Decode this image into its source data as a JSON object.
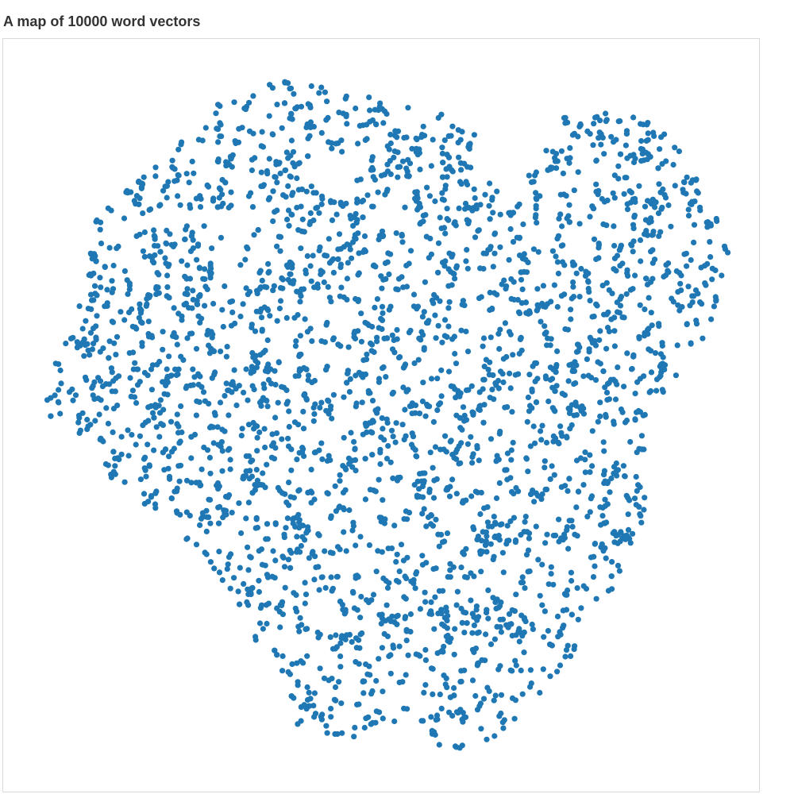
{
  "title": "A map of 10000 word vectors",
  "chart_data": {
    "type": "scatter",
    "title": "A map of 10000 word vectors",
    "xlabel": "",
    "ylabel": "",
    "grid": false,
    "legend": "none",
    "axes_visible": false,
    "point_color": "#1f77b4",
    "n_points_total": 10000,
    "xlim": [
      0,
      1
    ],
    "ylim": [
      0,
      1
    ],
    "series": [
      {
        "name": "",
        "x": [],
        "y": []
      }
    ],
    "shape_outline": [
      [
        0.05,
        0.52
      ],
      [
        0.08,
        0.44
      ],
      [
        0.12,
        0.27
      ],
      [
        0.2,
        0.2
      ],
      [
        0.27,
        0.13
      ],
      [
        0.36,
        0.1
      ],
      [
        0.46,
        0.12
      ],
      [
        0.54,
        0.14
      ],
      [
        0.6,
        0.17
      ],
      [
        0.64,
        0.27
      ],
      [
        0.7,
        0.15
      ],
      [
        0.78,
        0.13
      ],
      [
        0.84,
        0.15
      ],
      [
        0.9,
        0.26
      ],
      [
        0.92,
        0.34
      ],
      [
        0.88,
        0.45
      ],
      [
        0.82,
        0.52
      ],
      [
        0.81,
        0.66
      ],
      [
        0.76,
        0.76
      ],
      [
        0.7,
        0.86
      ],
      [
        0.62,
        0.93
      ],
      [
        0.56,
        0.95
      ],
      [
        0.52,
        0.9
      ],
      [
        0.46,
        0.93
      ],
      [
        0.38,
        0.92
      ],
      [
        0.32,
        0.8
      ],
      [
        0.26,
        0.7
      ],
      [
        0.16,
        0.62
      ],
      [
        0.1,
        0.58
      ]
    ]
  }
}
